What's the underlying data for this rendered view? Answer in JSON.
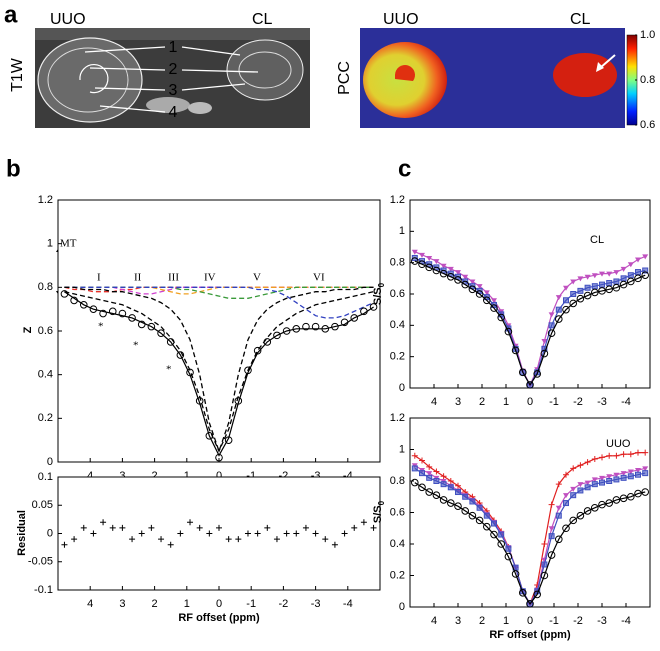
{
  "panel_a": {
    "label": "a",
    "left": {
      "labels": [
        "UUO",
        "CL"
      ],
      "ylabel": "T1W",
      "regions": [
        "1",
        "2",
        "3",
        "4"
      ]
    },
    "right": {
      "labels": [
        "UUO",
        "CL"
      ],
      "ylabel": "PCC",
      "colorbar": {
        "lim": [
          0.6,
          1.0
        ],
        "ticks": [
          {
            "value": 1.0,
            "label": "1.0"
          },
          {
            "value": 0.8,
            "label": "0.8"
          },
          {
            "value": 0.6,
            "label": "0.6"
          }
        ]
      }
    }
  },
  "panel_labels": [
    "b",
    "c"
  ],
  "chart_data": [
    {
      "type": "line",
      "ylabel": "Z",
      "xlim": [
        5,
        -5
      ],
      "ylim": [
        0,
        1.2
      ],
      "xticks": [
        4,
        3,
        2,
        1,
        0,
        -1,
        -2,
        -3,
        -4
      ],
      "yticks": [
        0,
        0.2,
        0.4,
        0.6,
        0.8,
        1,
        1.2
      ],
      "annotations": [
        "MT",
        "I",
        "II",
        "III",
        "IV",
        "V",
        "VI",
        "*",
        "*",
        "*"
      ],
      "x": [
        4.8,
        4.5,
        4.2,
        3.9,
        3.6,
        3.3,
        3.0,
        2.7,
        2.4,
        2.1,
        1.8,
        1.5,
        1.2,
        0.9,
        0.6,
        0.3,
        0,
        -0.3,
        -0.6,
        -0.9,
        -1.2,
        -1.5,
        -1.8,
        -2.1,
        -2.4,
        -2.7,
        -3.0,
        -3.3,
        -3.6,
        -3.9,
        -4.2,
        -4.5,
        -4.8
      ],
      "series": [
        {
          "color": "#e8302a",
          "dash": true,
          "line": true,
          "marker": "none",
          "values": [
            0.8,
            0.79,
            0.79,
            0.78,
            0.78,
            0.78,
            0.79,
            0.79,
            0.8,
            0.8,
            0.8,
            0.8,
            0.8,
            0.8,
            0.8,
            0.8,
            0.8,
            0.8,
            0.8,
            0.8,
            0.8,
            0.8,
            0.8,
            0.8,
            0.8,
            0.8,
            0.8,
            0.8,
            0.8,
            0.8,
            0.8,
            0.8,
            0.8
          ]
        },
        {
          "color": "#d040d0",
          "dash": true,
          "line": true,
          "marker": "none",
          "values": [
            0.8,
            0.8,
            0.8,
            0.8,
            0.8,
            0.8,
            0.79,
            0.78,
            0.77,
            0.77,
            0.78,
            0.79,
            0.8,
            0.8,
            0.8,
            0.8,
            0.8,
            0.8,
            0.8,
            0.8,
            0.8,
            0.8,
            0.8,
            0.8,
            0.8,
            0.8,
            0.8,
            0.8,
            0.8,
            0.8,
            0.8,
            0.8,
            0.8
          ]
        },
        {
          "color": "#f0a020",
          "dash": true,
          "line": true,
          "marker": "none",
          "values": [
            0.8,
            0.8,
            0.8,
            0.8,
            0.8,
            0.8,
            0.8,
            0.8,
            0.8,
            0.8,
            0.79,
            0.78,
            0.77,
            0.77,
            0.78,
            0.79,
            0.8,
            0.8,
            0.8,
            0.8,
            0.8,
            0.8,
            0.8,
            0.8,
            0.8,
            0.8,
            0.8,
            0.8,
            0.8,
            0.8,
            0.8,
            0.8,
            0.8
          ]
        },
        {
          "color": "#3a9a3a",
          "dash": true,
          "line": true,
          "marker": "none",
          "values": [
            0.8,
            0.8,
            0.8,
            0.8,
            0.8,
            0.8,
            0.8,
            0.8,
            0.8,
            0.8,
            0.8,
            0.8,
            0.79,
            0.79,
            0.78,
            0.77,
            0.76,
            0.75,
            0.75,
            0.75,
            0.76,
            0.77,
            0.78,
            0.79,
            0.8,
            0.8,
            0.8,
            0.8,
            0.8,
            0.8,
            0.8,
            0.8,
            0.8
          ]
        },
        {
          "color": "#3040c0",
          "dash": true,
          "line": true,
          "marker": "none",
          "values": [
            0.8,
            0.8,
            0.8,
            0.8,
            0.8,
            0.8,
            0.8,
            0.8,
            0.8,
            0.8,
            0.8,
            0.8,
            0.8,
            0.8,
            0.8,
            0.8,
            0.8,
            0.8,
            0.8,
            0.8,
            0.79,
            0.79,
            0.78,
            0.76,
            0.73,
            0.7,
            0.67,
            0.66,
            0.66,
            0.67,
            0.69,
            0.71,
            0.73
          ]
        },
        {
          "color": "#000000",
          "dash": true,
          "line": true,
          "marker": "none",
          "values": [
            0.78,
            0.77,
            0.76,
            0.75,
            0.74,
            0.73,
            0.72,
            0.7,
            0.68,
            0.65,
            0.62,
            0.57,
            0.51,
            0.42,
            0.3,
            0.15,
            0.05,
            0.15,
            0.3,
            0.42,
            0.51,
            0.57,
            0.62,
            0.65,
            0.68,
            0.7,
            0.72,
            0.73,
            0.74,
            0.75,
            0.76,
            0.77,
            0.78
          ]
        },
        {
          "color": "#000000",
          "dash": true,
          "line": true,
          "marker": "none",
          "values": [
            0.8,
            0.8,
            0.79,
            0.79,
            0.79,
            0.78,
            0.78,
            0.77,
            0.76,
            0.75,
            0.73,
            0.7,
            0.65,
            0.56,
            0.4,
            0.18,
            0.05,
            0.18,
            0.4,
            0.56,
            0.65,
            0.7,
            0.73,
            0.75,
            0.76,
            0.77,
            0.78,
            0.78,
            0.79,
            0.79,
            0.79,
            0.8,
            0.8
          ]
        },
        {
          "color": "#000000",
          "dash": false,
          "line": true,
          "marker": "none",
          "values": [
            0.78,
            0.75,
            0.72,
            0.7,
            0.69,
            0.68,
            0.67,
            0.66,
            0.64,
            0.62,
            0.59,
            0.55,
            0.49,
            0.4,
            0.27,
            0.12,
            0.03,
            0.11,
            0.27,
            0.41,
            0.5,
            0.55,
            0.58,
            0.6,
            0.61,
            0.61,
            0.61,
            0.61,
            0.62,
            0.63,
            0.66,
            0.68,
            0.71
          ]
        },
        {
          "color": "#000000",
          "dash": false,
          "line": false,
          "marker": "circle",
          "values": [
            0.77,
            0.74,
            0.72,
            0.7,
            0.68,
            0.69,
            0.68,
            0.66,
            0.63,
            0.62,
            0.59,
            0.55,
            0.49,
            0.41,
            0.28,
            0.12,
            0.02,
            0.1,
            0.28,
            0.42,
            0.51,
            0.55,
            0.58,
            0.6,
            0.61,
            0.62,
            0.62,
            0.61,
            0.62,
            0.64,
            0.66,
            0.69,
            0.71
          ]
        }
      ]
    },
    {
      "type": "line",
      "ylabel": "Residual",
      "xlabel": "RF offset (ppm)",
      "xlim": [
        5,
        -5
      ],
      "ylim": [
        -0.1,
        0.1
      ],
      "xticks": [
        4,
        3,
        2,
        1,
        0,
        -1,
        -2,
        -3,
        -4
      ],
      "yticks": [
        -0.1,
        -0.05,
        0,
        0.05,
        0.1
      ],
      "x": [
        4.8,
        4.5,
        4.2,
        3.9,
        3.6,
        3.3,
        3.0,
        2.7,
        2.4,
        2.1,
        1.8,
        1.5,
        1.2,
        0.9,
        0.6,
        0.3,
        0,
        -0.3,
        -0.6,
        -0.9,
        -1.2,
        -1.5,
        -1.8,
        -2.1,
        -2.4,
        -2.7,
        -3.0,
        -3.3,
        -3.6,
        -3.9,
        -4.2,
        -4.5,
        -4.8
      ],
      "series": [
        {
          "color": "#000000",
          "dash": false,
          "line": false,
          "marker": "plus",
          "values": [
            -0.02,
            -0.01,
            0.01,
            0.0,
            0.02,
            0.01,
            0.01,
            -0.01,
            0.0,
            0.01,
            -0.01,
            -0.02,
            0.0,
            0.02,
            0.01,
            0.0,
            0.01,
            -0.01,
            -0.01,
            0.0,
            0.0,
            0.01,
            -0.01,
            0.0,
            0.0,
            0.01,
            0.0,
            -0.01,
            -0.02,
            0.0,
            0.01,
            0.02,
            0.01
          ]
        }
      ]
    },
    {
      "type": "line",
      "ylabel": "S/S",
      "ylabel_sub": "0",
      "annotations": [
        "CL"
      ],
      "xlim": [
        5,
        -5
      ],
      "ylim": [
        0,
        1.2
      ],
      "xticks": [
        4,
        3,
        2,
        1,
        0,
        -1,
        -2,
        -3,
        -4
      ],
      "yticks": [
        0,
        0.2,
        0.4,
        0.6,
        0.8,
        1,
        1.2
      ],
      "x": [
        4.8,
        4.5,
        4.2,
        3.9,
        3.6,
        3.3,
        3.0,
        2.7,
        2.4,
        2.1,
        1.8,
        1.5,
        1.2,
        0.9,
        0.6,
        0.3,
        0,
        -0.3,
        -0.6,
        -0.9,
        -1.2,
        -1.5,
        -1.8,
        -2.1,
        -2.4,
        -2.7,
        -3.0,
        -3.3,
        -3.6,
        -3.9,
        -4.2,
        -4.5,
        -4.8
      ],
      "series": [
        {
          "color": "#c050c0",
          "dash": false,
          "line": true,
          "marker": "triangle",
          "values": [
            0.87,
            0.85,
            0.83,
            0.81,
            0.78,
            0.76,
            0.74,
            0.71,
            0.68,
            0.65,
            0.61,
            0.56,
            0.49,
            0.4,
            0.27,
            0.11,
            0.02,
            0.12,
            0.3,
            0.47,
            0.58,
            0.64,
            0.68,
            0.7,
            0.71,
            0.72,
            0.73,
            0.73,
            0.74,
            0.76,
            0.79,
            0.82,
            0.84
          ]
        },
        {
          "color": "#4050c0",
          "dash": false,
          "line": true,
          "marker": "square",
          "values": [
            0.83,
            0.81,
            0.79,
            0.77,
            0.75,
            0.73,
            0.71,
            0.68,
            0.65,
            0.62,
            0.58,
            0.53,
            0.47,
            0.38,
            0.25,
            0.1,
            0.02,
            0.1,
            0.25,
            0.4,
            0.5,
            0.56,
            0.6,
            0.62,
            0.64,
            0.65,
            0.66,
            0.67,
            0.68,
            0.7,
            0.72,
            0.74,
            0.75
          ]
        },
        {
          "color": "#000000",
          "dash": false,
          "line": true,
          "marker": "circle",
          "values": [
            0.81,
            0.79,
            0.77,
            0.75,
            0.73,
            0.71,
            0.69,
            0.66,
            0.63,
            0.6,
            0.56,
            0.51,
            0.45,
            0.36,
            0.24,
            0.1,
            0.02,
            0.09,
            0.22,
            0.35,
            0.44,
            0.5,
            0.54,
            0.57,
            0.59,
            0.61,
            0.62,
            0.63,
            0.64,
            0.66,
            0.68,
            0.7,
            0.72
          ]
        }
      ]
    },
    {
      "type": "line",
      "ylabel": "S/S",
      "ylabel_sub": "0",
      "xlabel": "RF offset (ppm)",
      "annotations": [
        "UUO"
      ],
      "xlim": [
        5,
        -5
      ],
      "ylim": [
        0,
        1.2
      ],
      "xticks": [
        4,
        3,
        2,
        1,
        0,
        -1,
        -2,
        -3,
        -4
      ],
      "yticks": [
        0,
        0.2,
        0.4,
        0.6,
        0.8,
        1,
        1.2
      ],
      "x": [
        4.8,
        4.5,
        4.2,
        3.9,
        3.6,
        3.3,
        3.0,
        2.7,
        2.4,
        2.1,
        1.8,
        1.5,
        1.2,
        0.9,
        0.6,
        0.3,
        0,
        -0.3,
        -0.6,
        -0.9,
        -1.2,
        -1.5,
        -1.8,
        -2.1,
        -2.4,
        -2.7,
        -3.0,
        -3.3,
        -3.6,
        -3.9,
        -4.2,
        -4.5,
        -4.8
      ],
      "series": [
        {
          "color": "#e02020",
          "dash": false,
          "line": true,
          "marker": "plus",
          "values": [
            0.96,
            0.93,
            0.89,
            0.86,
            0.83,
            0.8,
            0.77,
            0.73,
            0.7,
            0.66,
            0.61,
            0.55,
            0.48,
            0.38,
            0.25,
            0.1,
            0.02,
            0.14,
            0.4,
            0.65,
            0.78,
            0.84,
            0.88,
            0.9,
            0.92,
            0.94,
            0.95,
            0.96,
            0.96,
            0.97,
            0.97,
            0.98,
            0.98
          ]
        },
        {
          "color": "#c050c0",
          "dash": false,
          "line": true,
          "marker": "triangle",
          "values": [
            0.9,
            0.87,
            0.85,
            0.82,
            0.8,
            0.77,
            0.74,
            0.71,
            0.68,
            0.64,
            0.59,
            0.54,
            0.47,
            0.38,
            0.25,
            0.1,
            0.02,
            0.11,
            0.3,
            0.5,
            0.63,
            0.71,
            0.75,
            0.78,
            0.79,
            0.81,
            0.82,
            0.83,
            0.84,
            0.85,
            0.86,
            0.87,
            0.88
          ]
        },
        {
          "color": "#4050c0",
          "dash": false,
          "line": true,
          "marker": "square",
          "values": [
            0.88,
            0.85,
            0.82,
            0.8,
            0.78,
            0.76,
            0.73,
            0.7,
            0.67,
            0.63,
            0.58,
            0.53,
            0.46,
            0.37,
            0.25,
            0.1,
            0.02,
            0.1,
            0.27,
            0.45,
            0.58,
            0.66,
            0.71,
            0.74,
            0.76,
            0.78,
            0.79,
            0.8,
            0.81,
            0.82,
            0.83,
            0.84,
            0.85
          ]
        },
        {
          "color": "#000000",
          "dash": false,
          "line": true,
          "marker": "circle",
          "values": [
            0.79,
            0.76,
            0.73,
            0.71,
            0.68,
            0.66,
            0.64,
            0.61,
            0.58,
            0.55,
            0.51,
            0.46,
            0.4,
            0.32,
            0.21,
            0.09,
            0.02,
            0.08,
            0.2,
            0.33,
            0.43,
            0.5,
            0.55,
            0.58,
            0.61,
            0.63,
            0.65,
            0.66,
            0.68,
            0.69,
            0.7,
            0.72,
            0.73
          ]
        }
      ]
    }
  ]
}
